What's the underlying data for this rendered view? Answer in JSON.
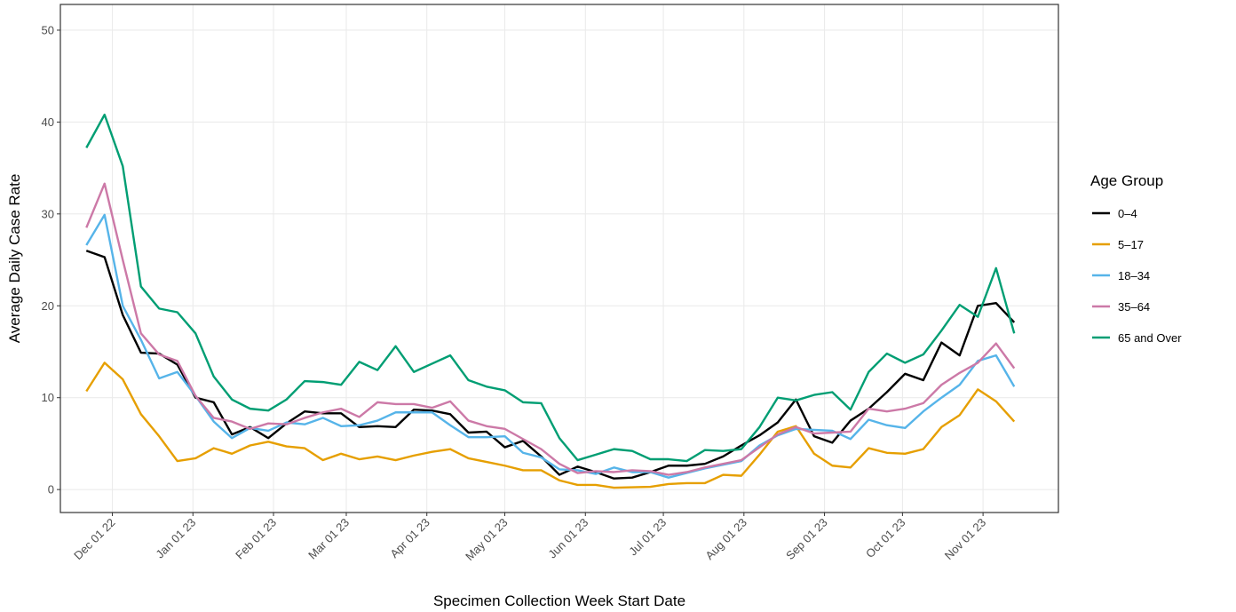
{
  "chart_data": {
    "type": "line",
    "x_label": "Specimen Collection Week Start Date",
    "y_label": "Average Daily Case Rate",
    "legend_title": "Age Group",
    "legend_position": "right",
    "grid": true,
    "x": [
      "2022-11-21",
      "2022-11-28",
      "2022-12-05",
      "2022-12-12",
      "2022-12-19",
      "2022-12-26",
      "2023-01-02",
      "2023-01-09",
      "2023-01-16",
      "2023-01-23",
      "2023-01-30",
      "2023-02-06",
      "2023-02-13",
      "2023-02-20",
      "2023-02-27",
      "2023-03-06",
      "2023-03-13",
      "2023-03-20",
      "2023-03-27",
      "2023-04-03",
      "2023-04-10",
      "2023-04-17",
      "2023-04-24",
      "2023-05-01",
      "2023-05-08",
      "2023-05-15",
      "2023-05-22",
      "2023-05-29",
      "2023-06-05",
      "2023-06-12",
      "2023-06-19",
      "2023-06-26",
      "2023-07-03",
      "2023-07-10",
      "2023-07-17",
      "2023-07-24",
      "2023-07-31",
      "2023-08-07",
      "2023-08-14",
      "2023-08-21",
      "2023-08-28",
      "2023-09-04",
      "2023-09-11",
      "2023-09-18",
      "2023-09-25",
      "2023-10-02",
      "2023-10-09",
      "2023-10-16",
      "2023-10-23",
      "2023-10-30",
      "2023-11-06",
      "2023-11-13"
    ],
    "xlim": [
      "2022-11-11",
      "2023-11-30"
    ],
    "xticks": [
      {
        "value": "2022-12-01",
        "label": "Dec 01 22"
      },
      {
        "value": "2023-01-01",
        "label": "Jan 01 23"
      },
      {
        "value": "2023-02-01",
        "label": "Feb 01 23"
      },
      {
        "value": "2023-03-01",
        "label": "Mar 01 23"
      },
      {
        "value": "2023-04-01",
        "label": "Apr 01 23"
      },
      {
        "value": "2023-05-01",
        "label": "May 01 23"
      },
      {
        "value": "2023-06-01",
        "label": "Jun 01 23"
      },
      {
        "value": "2023-07-01",
        "label": "Jul 01 23"
      },
      {
        "value": "2023-08-01",
        "label": "Aug 01 23"
      },
      {
        "value": "2023-09-01",
        "label": "Sep 01 23"
      },
      {
        "value": "2023-10-01",
        "label": "Oct 01 23"
      },
      {
        "value": "2023-11-01",
        "label": "Nov 01 23"
      }
    ],
    "ylim": [
      -2.5,
      52.8
    ],
    "yticks": [
      0,
      10,
      20,
      30,
      40,
      50
    ],
    "series": [
      {
        "name": "0–4",
        "color": "#000000",
        "values": [
          26,
          25.3,
          19,
          14.9,
          14.8,
          13.6,
          10,
          9.5,
          6,
          6.8,
          5.6,
          7.2,
          8.5,
          8.3,
          8.3,
          6.8,
          6.9,
          6.8,
          8.7,
          8.6,
          8.2,
          6.2,
          6.3,
          4.6,
          5.3,
          3.6,
          1.6,
          2.5,
          1.9,
          1.2,
          1.3,
          1.9,
          2.6,
          2.6,
          2.8,
          3.6,
          4.8,
          5.9,
          7.3,
          9.8,
          5.8,
          5.1,
          7.5,
          8.8,
          10.6,
          12.6,
          11.9,
          16,
          14.6,
          20,
          20.3,
          18.2
        ]
      },
      {
        "name": "5–17",
        "color": "#E69F00",
        "values": [
          10.7,
          13.8,
          12,
          8.2,
          5.8,
          3.1,
          3.4,
          4.5,
          3.9,
          4.8,
          5.2,
          4.7,
          4.5,
          3.2,
          3.9,
          3.3,
          3.6,
          3.2,
          3.7,
          4.1,
          4.4,
          3.4,
          3,
          2.6,
          2.1,
          2.1,
          1,
          0.5,
          0.5,
          0.2,
          0.25,
          0.3,
          0.6,
          0.7,
          0.7,
          1.6,
          1.5,
          3.8,
          6.3,
          6.9,
          3.9,
          2.6,
          2.4,
          4.5,
          4,
          3.9,
          4.4,
          6.8,
          8.1,
          10.9,
          9.6,
          7.4
        ]
      },
      {
        "name": "18–34",
        "color": "#56B4E9",
        "values": [
          26.6,
          29.9,
          20,
          16.3,
          12.1,
          12.8,
          10.2,
          7.4,
          5.6,
          6.7,
          6.4,
          7.3,
          7.1,
          7.8,
          6.9,
          7,
          7.5,
          8.4,
          8.4,
          8.4,
          7,
          5.7,
          5.7,
          5.8,
          4,
          3.5,
          2.2,
          2.1,
          1.7,
          2.4,
          1.9,
          1.9,
          1.3,
          1.8,
          2.3,
          2.7,
          3.1,
          4.8,
          5.9,
          6.6,
          6.5,
          6.4,
          5.5,
          7.6,
          7,
          6.7,
          8.5,
          10,
          11.4,
          14,
          14.6,
          11.2
        ]
      },
      {
        "name": "35–64",
        "color": "#CC79A7",
        "values": [
          28.5,
          33.3,
          25,
          17,
          14.7,
          14,
          10.2,
          7.8,
          7.4,
          6.6,
          7.2,
          7.1,
          7.8,
          8.4,
          8.8,
          7.9,
          9.5,
          9.3,
          9.3,
          8.9,
          9.6,
          7.5,
          6.9,
          6.6,
          5.5,
          4.4,
          2.8,
          1.8,
          2,
          1.9,
          2.1,
          2,
          1.6,
          1.9,
          2.4,
          2.8,
          3.2,
          4.6,
          6,
          6.8,
          6.1,
          6.2,
          6.3,
          8.8,
          8.5,
          8.8,
          9.4,
          11.4,
          12.7,
          13.8,
          15.9,
          13.2
        ]
      },
      {
        "name": "65 and Over",
        "color": "#009E73",
        "values": [
          37.2,
          40.8,
          35.2,
          22.1,
          19.7,
          19.3,
          17,
          12.3,
          9.8,
          8.8,
          8.6,
          9.8,
          11.8,
          11.7,
          11.4,
          13.9,
          13,
          15.6,
          12.8,
          13.7,
          14.6,
          11.9,
          11.2,
          10.8,
          9.5,
          9.4,
          5.6,
          3.2,
          3.8,
          4.4,
          4.2,
          3.3,
          3.3,
          3.1,
          4.3,
          4.2,
          4.4,
          6.8,
          10,
          9.7,
          10.3,
          10.6,
          8.7,
          12.8,
          14.8,
          13.8,
          14.7,
          17.3,
          20.1,
          18.8,
          24.1,
          17
        ]
      }
    ]
  }
}
